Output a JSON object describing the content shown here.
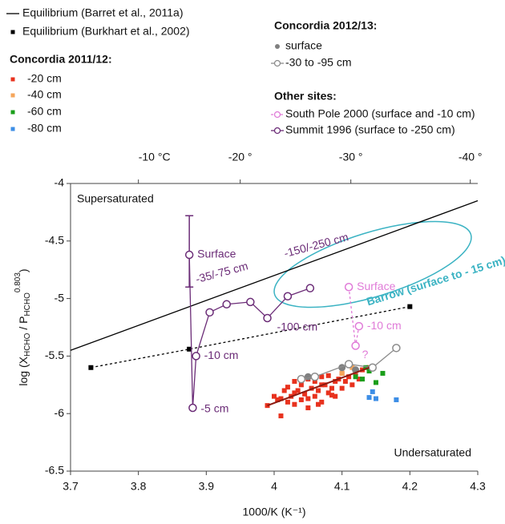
{
  "chart_data": {
    "type": "scatter",
    "x_label": "1000/K (K⁻¹)",
    "y_label_parts": [
      "log (X",
      "HCHO",
      " / P",
      "HCHO",
      "0.803",
      ")"
    ],
    "xlim": [
      3.7,
      4.3
    ],
    "xticks": [
      3.7,
      3.8,
      3.9,
      4,
      4.1,
      4.2,
      4.3
    ],
    "ylim": [
      -6.5,
      -4
    ],
    "yticks": [
      -6.5,
      -6,
      -5.5,
      -5,
      -4.5,
      -4
    ],
    "x2ticks": [
      {
        "value": 3.8,
        "label": "-10 °C"
      },
      {
        "value": 3.95,
        "label": "-20 °"
      },
      {
        "value": 4.113,
        "label": "-30 °"
      },
      {
        "value": 4.289,
        "label": "-40 °"
      }
    ],
    "annotations": [
      "Supersaturated",
      "Undersaturated"
    ],
    "legend_headings": [
      "Concordia 2011/12:",
      "Concordia 2012/13:",
      "Other sites:"
    ],
    "barrow": {
      "label": "Barrow (surface to - 15 cm)",
      "color": "#3bb3c3"
    },
    "series": [
      {
        "name": "Equilibrium (Barret et al., 2011a)",
        "color": "#000000",
        "marker": "none",
        "line": "solid",
        "x": [
          3.7,
          4.3
        ],
        "values": [
          -5.45,
          -4.15
        ]
      },
      {
        "name": "Equilibrium (Burkhart et al., 2002)",
        "color": "#000000",
        "marker": "square",
        "line": "dashed",
        "x": [
          3.73,
          3.875,
          4.2
        ],
        "values": [
          -5.6,
          -5.44,
          -5.07
        ]
      },
      {
        "name": "-20 cm",
        "color": "#e8321e",
        "marker": "square",
        "line": "none",
        "x": [
          3.99,
          4.0,
          4.005,
          4.01,
          4.015,
          4.02,
          4.02,
          4.025,
          4.03,
          4.03,
          4.035,
          4.04,
          4.04,
          4.045,
          4.05,
          4.05,
          4.055,
          4.06,
          4.06,
          4.065,
          4.07,
          4.07,
          4.075,
          4.08,
          4.08,
          4.085,
          4.09,
          4.09,
          4.095,
          4.1,
          4.1,
          4.105,
          4.11,
          4.115,
          4.12,
          4.125,
          4.13,
          4.14,
          4.01,
          4.03,
          4.05,
          4.07,
          4.085,
          4.065
        ],
        "values": [
          -5.93,
          -5.85,
          -5.88,
          -6.02,
          -5.8,
          -5.9,
          -5.77,
          -5.85,
          -5.72,
          -5.92,
          -5.8,
          -5.88,
          -5.75,
          -5.83,
          -5.7,
          -5.95,
          -5.78,
          -5.85,
          -5.72,
          -5.8,
          -5.68,
          -5.9,
          -5.75,
          -5.82,
          -5.67,
          -5.78,
          -5.72,
          -5.85,
          -5.7,
          -5.65,
          -5.78,
          -5.72,
          -5.68,
          -5.75,
          -5.65,
          -5.7,
          -5.62,
          -5.6,
          -5.87,
          -5.82,
          -5.87,
          -5.75,
          -5.84,
          -5.92
        ]
      },
      {
        "name": "-40 cm",
        "color": "#f5a65b",
        "marker": "square",
        "line": "none",
        "x": [
          4.1,
          4.115,
          4.12
        ],
        "values": [
          -5.65,
          -5.6,
          -5.63
        ]
      },
      {
        "name": "-60 cm",
        "color": "#1a9e1a",
        "marker": "square",
        "line": "none",
        "x": [
          4.12,
          4.13,
          4.135,
          4.14,
          4.15,
          4.16
        ],
        "values": [
          -5.68,
          -5.7,
          -5.6,
          -5.63,
          -5.73,
          -5.65
        ]
      },
      {
        "name": "-80 cm",
        "color": "#3d8ee6",
        "marker": "square",
        "line": "none",
        "x": [
          4.14,
          4.145,
          4.15,
          4.18
        ],
        "values": [
          -5.86,
          -5.81,
          -5.87,
          -5.88
        ]
      },
      {
        "name": "surface",
        "color": "#808080",
        "marker": "circle",
        "line": "none",
        "x": [
          4.05,
          4.1,
          4.12
        ],
        "values": [
          -5.68,
          -5.6,
          -5.62
        ]
      },
      {
        "name": "-30 to -95 cm",
        "color": "#8c8c8c",
        "marker": "open-circle",
        "line": "solid",
        "x": [
          4.04,
          4.06,
          4.11,
          4.145,
          4.18
        ],
        "values": [
          -5.7,
          -5.68,
          -5.57,
          -5.6,
          -5.43
        ]
      },
      {
        "name": "trend",
        "color": "#8b1a10",
        "marker": "none",
        "line": "solid",
        "x": [
          3.99,
          4.14
        ],
        "values": [
          -5.93,
          -5.6
        ]
      },
      {
        "name": "South Pole 2000 (surface and -10 cm)",
        "color": "#e07bd8",
        "marker": "open-circle",
        "line": "dashed",
        "x": [
          4.11,
          4.12,
          4.125
        ],
        "values": [
          -4.9,
          -5.41,
          -5.24
        ],
        "point_labels": [
          "Surface",
          "?",
          "-10 cm"
        ]
      },
      {
        "name": "Summit 1996 (surface to -250 cm)",
        "color": "#6b2c77",
        "marker": "open-circle",
        "line": "solid",
        "x": [
          3.875,
          3.88,
          3.885,
          3.905,
          3.93,
          3.965,
          3.99,
          4.02,
          4.053
        ],
        "values": [
          -4.62,
          -5.95,
          -5.5,
          -5.12,
          -5.05,
          -5.03,
          -5.17,
          -4.98,
          -4.91
        ],
        "point_labels": [
          "Surface",
          "-5 cm",
          "-10 cm",
          null,
          "-35/-75 cm",
          null,
          "-100 cm",
          null,
          "-150/-250 cm"
        ],
        "error_top": -4.28,
        "error_bottom": -4.9
      }
    ]
  }
}
